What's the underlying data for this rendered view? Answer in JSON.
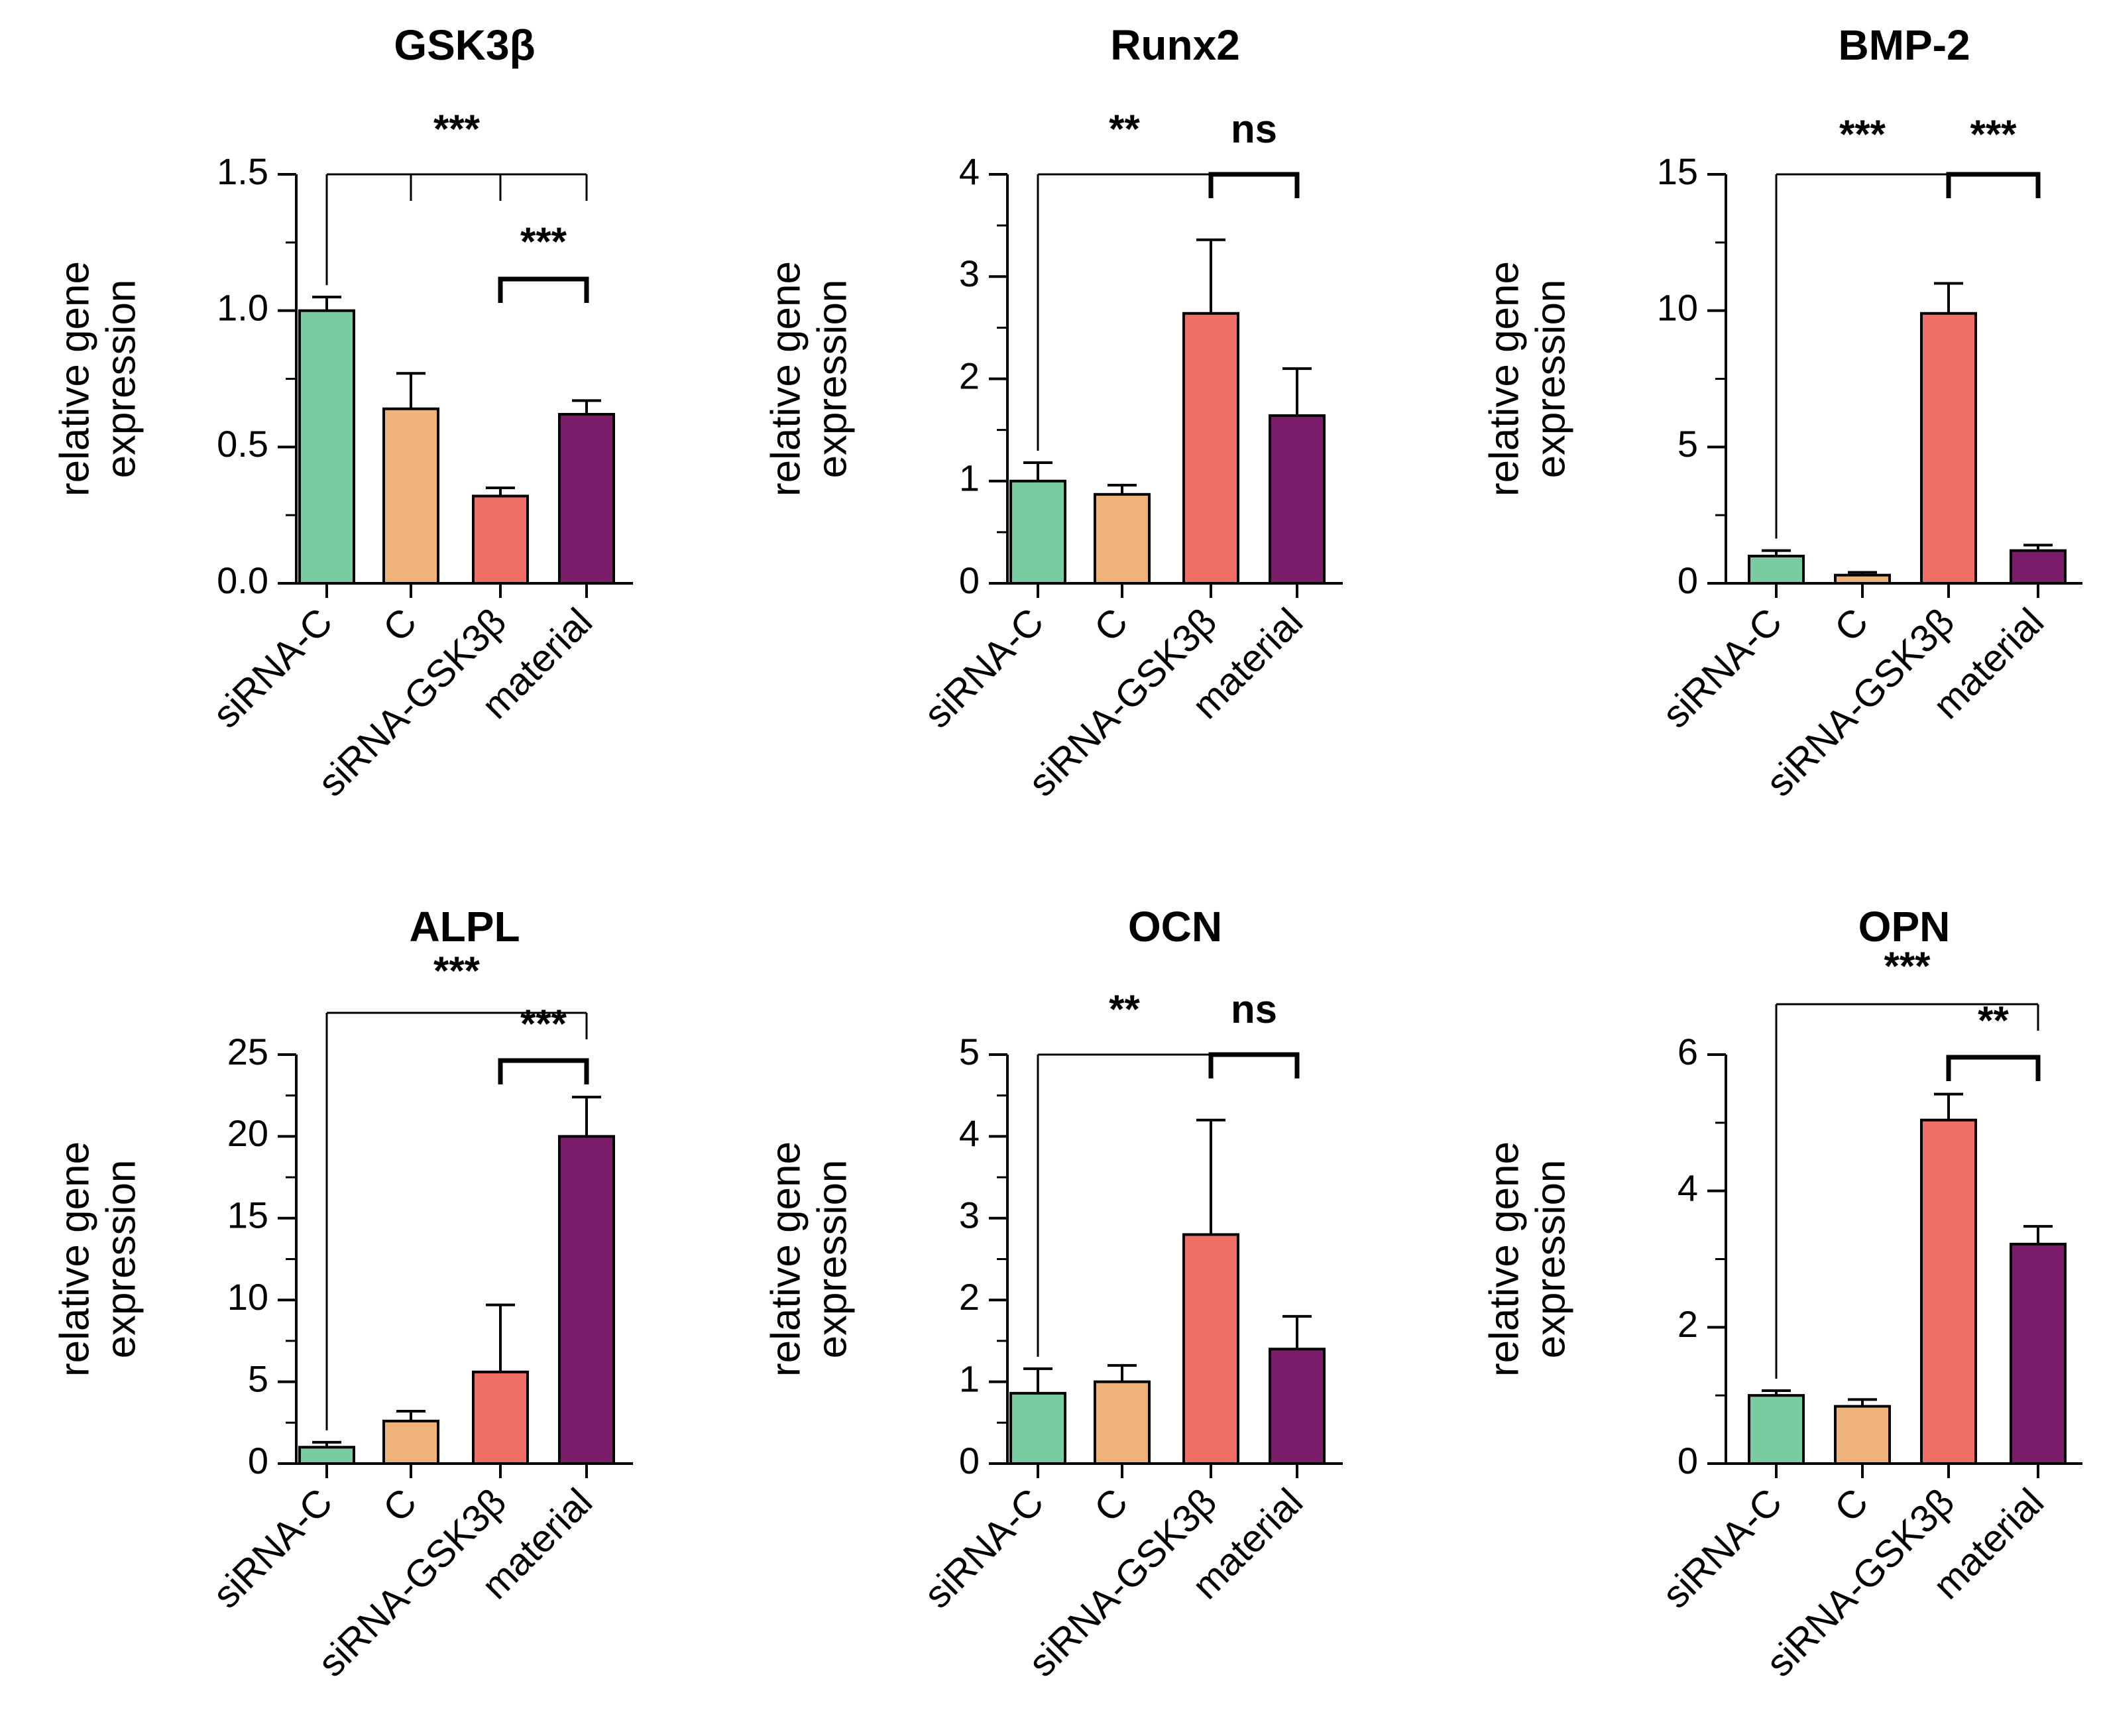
{
  "chart_data": [
    {
      "type": "bar",
      "title": "GSK3β",
      "ylabel": [
        "relative gene",
        "expression"
      ],
      "categories": [
        "siRNA-C",
        "C",
        "siRNA-GSK3β",
        "material"
      ],
      "values": [
        1.0,
        0.64,
        0.32,
        0.62
      ],
      "errors": [
        0.05,
        0.13,
        0.03,
        0.05
      ],
      "ylim": [
        0,
        1.5
      ],
      "yticks": [
        "0.0",
        "0.5",
        "1.0",
        "1.5"
      ],
      "annotations": [
        {
          "label": "***",
          "type": "multi",
          "from": 0,
          "to": 3
        },
        {
          "label": "***",
          "type": "pair",
          "from": 2,
          "to": 3
        }
      ]
    },
    {
      "type": "bar",
      "title": "Runx2",
      "ylabel": [
        "relative gene",
        "expression"
      ],
      "categories": [
        "siRNA-C",
        "C",
        "siRNA-GSK3β",
        "material"
      ],
      "values": [
        1.0,
        0.87,
        2.64,
        1.64
      ],
      "errors": [
        0.18,
        0.09,
        0.72,
        0.46
      ],
      "ylim": [
        0,
        4
      ],
      "yticks": [
        "0",
        "1",
        "2",
        "3",
        "4"
      ],
      "annotations": [
        {
          "label": "**",
          "type": "multi",
          "from": 0,
          "to": 2
        },
        {
          "label": "ns",
          "type": "pair",
          "from": 2,
          "to": 3
        }
      ]
    },
    {
      "type": "bar",
      "title": "BMP-2",
      "ylabel": [
        "relative gene",
        "expression"
      ],
      "categories": [
        "siRNA-C",
        "C",
        "siRNA-GSK3β",
        "material"
      ],
      "values": [
        1.0,
        0.3,
        9.9,
        1.2
      ],
      "errors": [
        0.2,
        0.1,
        1.1,
        0.2
      ],
      "ylim": [
        0,
        15
      ],
      "yticks": [
        "0",
        "5",
        "10",
        "15"
      ],
      "annotations": [
        {
          "label": "***",
          "type": "multi",
          "from": 0,
          "to": 2
        },
        {
          "label": "***",
          "type": "pair",
          "from": 2,
          "to": 3
        }
      ]
    },
    {
      "type": "bar",
      "title": "ALPL",
      "ylabel": [
        "relative gene",
        "expression"
      ],
      "categories": [
        "siRNA-C",
        "C",
        "siRNA-GSK3β",
        "material"
      ],
      "values": [
        1.0,
        2.6,
        5.6,
        20.0
      ],
      "errors": [
        0.3,
        0.6,
        4.1,
        2.4
      ],
      "ylim": [
        0,
        25
      ],
      "yticks": [
        "0",
        "5",
        "10",
        "15",
        "20",
        "25"
      ],
      "annotations": [
        {
          "label": "***",
          "type": "multi",
          "from": 0,
          "to": 3
        },
        {
          "label": "***",
          "type": "pair",
          "from": 2,
          "to": 3
        }
      ]
    },
    {
      "type": "bar",
      "title": "OCN",
      "ylabel": [
        "relative gene",
        "expression"
      ],
      "categories": [
        "siRNA-C",
        "C",
        "siRNA-GSK3β",
        "material"
      ],
      "values": [
        0.86,
        1.0,
        2.8,
        1.4
      ],
      "errors": [
        0.3,
        0.2,
        1.4,
        0.4
      ],
      "ylim": [
        0,
        5
      ],
      "yticks": [
        "0",
        "1",
        "2",
        "3",
        "4",
        "5"
      ],
      "annotations": [
        {
          "label": "**",
          "type": "multi",
          "from": 0,
          "to": 2
        },
        {
          "label": "ns",
          "type": "pair",
          "from": 2,
          "to": 3
        }
      ]
    },
    {
      "type": "bar",
      "title": "OPN",
      "ylabel": [
        "relative gene",
        "expression"
      ],
      "categories": [
        "siRNA-C",
        "C",
        "siRNA-GSK3β",
        "material"
      ],
      "values": [
        1.0,
        0.84,
        5.04,
        3.22
      ],
      "errors": [
        0.07,
        0.1,
        0.38,
        0.26
      ],
      "ylim": [
        0,
        6
      ],
      "yticks": [
        "0",
        "2",
        "4",
        "6"
      ],
      "annotations": [
        {
          "label": "***",
          "type": "multi",
          "from": 0,
          "to": 3
        },
        {
          "label": "**",
          "type": "pair",
          "from": 2,
          "to": 3
        }
      ]
    }
  ],
  "colors": {
    "bars": [
      "#7ACBA0",
      "#EFB27A",
      "#EF6F66",
      "#7B1C6B"
    ],
    "axis": "#000000"
  }
}
